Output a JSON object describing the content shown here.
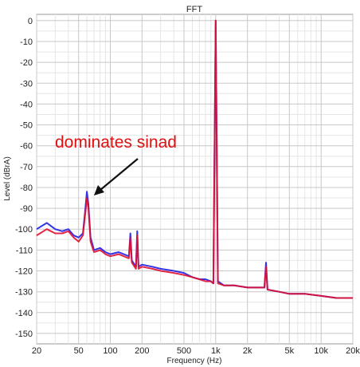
{
  "chart_data": {
    "type": "line",
    "title": "FFT",
    "xlabel": "Frequency (Hz)",
    "ylabel": "Level (dBrA)",
    "xscale": "log",
    "xlim": [
      20,
      20000
    ],
    "ylim": [
      -155,
      3
    ],
    "grid": true,
    "x_tick_values": [
      20,
      50,
      100,
      200,
      500,
      1000,
      2000,
      5000,
      10000,
      20000
    ],
    "x_ticks": [
      "20",
      "50",
      "100",
      "200",
      "500",
      "1k",
      "2k",
      "5k",
      "10k",
      "20k"
    ],
    "y_ticks": [
      "0",
      "-10",
      "-20",
      "-30",
      "-40",
      "-50",
      "-60",
      "-70",
      "-80",
      "-90",
      "-100",
      "-110",
      "-120",
      "-130",
      "-140",
      "-150"
    ],
    "annotation": {
      "text": "dominates sinad",
      "points_to": [
        60,
        -85
      ],
      "color": "#e01010"
    },
    "series": [
      {
        "color": "#3434e6",
        "points": [
          [
            20,
            -100
          ],
          [
            25,
            -97
          ],
          [
            30,
            -100
          ],
          [
            35,
            -101
          ],
          [
            40,
            -100
          ],
          [
            45,
            -103
          ],
          [
            50,
            -104
          ],
          [
            55,
            -102
          ],
          [
            58,
            -90
          ],
          [
            60,
            -82
          ],
          [
            62,
            -88
          ],
          [
            65,
            -104
          ],
          [
            70,
            -110
          ],
          [
            80,
            -109
          ],
          [
            90,
            -111
          ],
          [
            100,
            -112
          ],
          [
            120,
            -111
          ],
          [
            150,
            -113
          ],
          [
            155,
            -102
          ],
          [
            160,
            -115
          ],
          [
            175,
            -118
          ],
          [
            180,
            -101
          ],
          [
            185,
            -118
          ],
          [
            200,
            -117
          ],
          [
            250,
            -118
          ],
          [
            300,
            -119
          ],
          [
            400,
            -120
          ],
          [
            500,
            -121
          ],
          [
            600,
            -123
          ],
          [
            700,
            -124
          ],
          [
            800,
            -124
          ],
          [
            900,
            -125
          ],
          [
            950,
            -126
          ],
          [
            1000,
            0
          ],
          [
            1050,
            -125
          ],
          [
            1200,
            -127
          ],
          [
            1500,
            -127
          ],
          [
            2000,
            -128
          ],
          [
            2900,
            -128
          ],
          [
            3000,
            -116
          ],
          [
            3100,
            -129
          ],
          [
            4000,
            -130
          ],
          [
            5000,
            -131
          ],
          [
            7000,
            -131
          ],
          [
            10000,
            -132
          ],
          [
            14000,
            -133
          ],
          [
            20000,
            -133
          ]
        ]
      },
      {
        "color": "#e01030",
        "points": [
          [
            20,
            -103
          ],
          [
            25,
            -100
          ],
          [
            30,
            -102
          ],
          [
            35,
            -102
          ],
          [
            40,
            -101
          ],
          [
            45,
            -104
          ],
          [
            50,
            -106
          ],
          [
            55,
            -103
          ],
          [
            58,
            -92
          ],
          [
            60,
            -85
          ],
          [
            62,
            -90
          ],
          [
            65,
            -106
          ],
          [
            70,
            -111
          ],
          [
            80,
            -110
          ],
          [
            90,
            -112
          ],
          [
            100,
            -113
          ],
          [
            120,
            -112
          ],
          [
            150,
            -114
          ],
          [
            155,
            -104
          ],
          [
            160,
            -116
          ],
          [
            175,
            -119
          ],
          [
            180,
            -103
          ],
          [
            185,
            -119
          ],
          [
            200,
            -118
          ],
          [
            250,
            -119
          ],
          [
            300,
            -120
          ],
          [
            400,
            -121
          ],
          [
            500,
            -122
          ],
          [
            600,
            -123
          ],
          [
            700,
            -124
          ],
          [
            800,
            -125
          ],
          [
            900,
            -125
          ],
          [
            950,
            -126
          ],
          [
            1000,
            0
          ],
          [
            1050,
            -126
          ],
          [
            1200,
            -127
          ],
          [
            1500,
            -127
          ],
          [
            2000,
            -128
          ],
          [
            2900,
            -128
          ],
          [
            3000,
            -118
          ],
          [
            3100,
            -129
          ],
          [
            4000,
            -130
          ],
          [
            5000,
            -131
          ],
          [
            7000,
            -131
          ],
          [
            10000,
            -132
          ],
          [
            14000,
            -133
          ],
          [
            20000,
            -133
          ]
        ]
      }
    ]
  }
}
